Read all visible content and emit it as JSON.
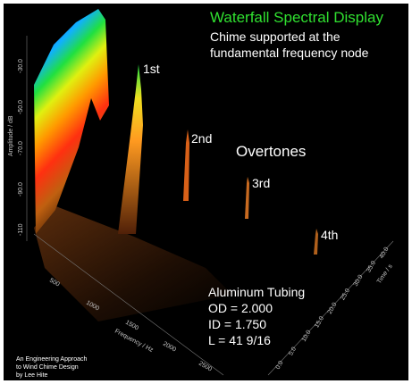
{
  "header": {
    "title": "Waterfall Spectral Display",
    "subtitle_lines": [
      "Chime supported at the",
      "fundamental frequency node"
    ]
  },
  "peak_labels": [
    "1st",
    "2nd",
    "3rd",
    "4th"
  ],
  "overtones_label": "Overtones",
  "tubing": {
    "heading": "Aluminum Tubing",
    "lines": [
      "OD = 2.000",
      "ID = 1.750",
      "L = 41 9/16"
    ]
  },
  "credit_lines": [
    "An Engineering Approach",
    "to Wind Chime Design",
    "by Lee Hite"
  ],
  "amplitude_axis": {
    "label": "Amplitude / dB",
    "ticks": [
      "-30.0",
      "-50.0",
      "-70.0",
      "-90.0",
      "-110"
    ]
  },
  "frequency_axis": {
    "label": "Frequency / Hz",
    "ticks": [
      "500",
      "1000",
      "1500",
      "2000",
      "2500"
    ]
  },
  "time_axis": {
    "label": "Time / s",
    "ticks": [
      "0.0",
      "5.0",
      "10.0",
      "15.0",
      "20.0",
      "25.0",
      "30.0",
      "35.0",
      "40.0"
    ]
  }
}
